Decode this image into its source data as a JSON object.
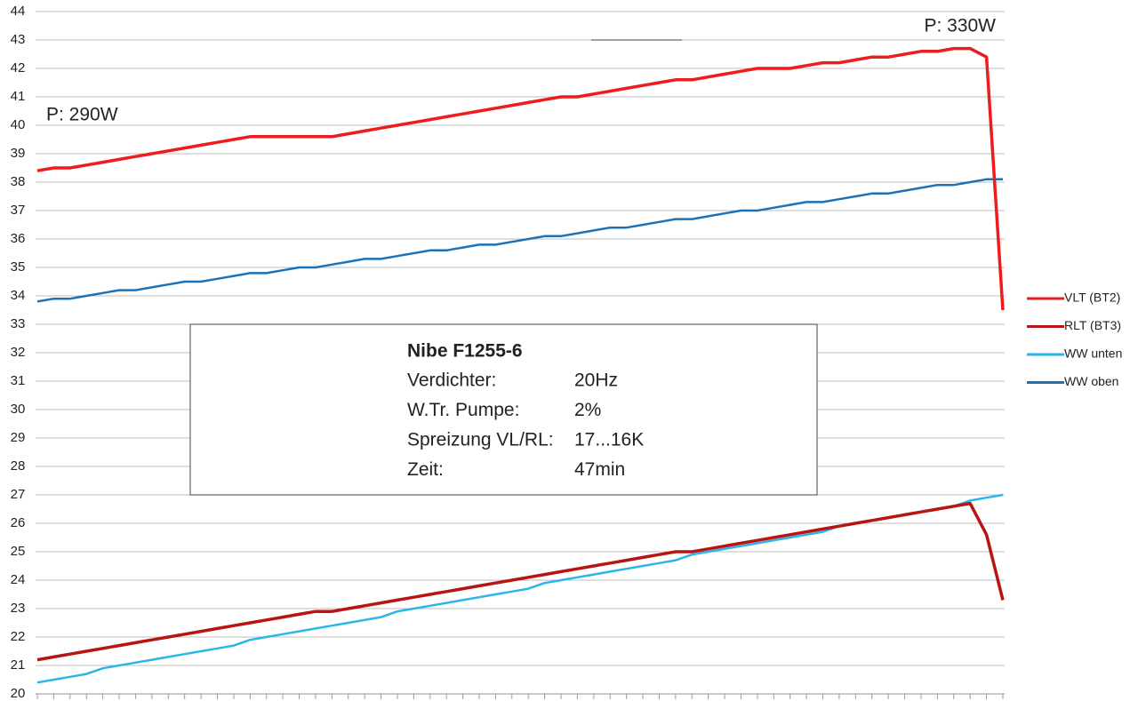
{
  "chart_data": {
    "type": "line",
    "categories": [
      null,
      null,
      null,
      null,
      null,
      null,
      null,
      null,
      null,
      null,
      null,
      null,
      null,
      null,
      null,
      null,
      null,
      null,
      null,
      null,
      null,
      null,
      null,
      null,
      null,
      null,
      null,
      null,
      null,
      null,
      null,
      null,
      null,
      null,
      null,
      null,
      null,
      null,
      null,
      null,
      null,
      null,
      null,
      null,
      null,
      null,
      null,
      null,
      null,
      null,
      null,
      null,
      null,
      null,
      null,
      null,
      null,
      null,
      null,
      null
    ],
    "series": [
      {
        "name": "VLT (BT2)",
        "color": "#ee1c1c",
        "width": 3.5,
        "values": [
          38.4,
          38.5,
          38.5,
          38.6,
          38.7,
          38.8,
          38.9,
          39.0,
          39.1,
          39.2,
          39.3,
          39.4,
          39.5,
          39.6,
          39.6,
          39.6,
          39.6,
          39.6,
          39.6,
          39.7,
          39.8,
          39.9,
          40.0,
          40.1,
          40.2,
          40.3,
          40.4,
          40.5,
          40.6,
          40.7,
          40.8,
          40.9,
          41.0,
          41.0,
          41.1,
          41.2,
          41.3,
          41.4,
          41.5,
          41.6,
          41.6,
          41.7,
          41.8,
          41.9,
          42.0,
          42.0,
          42.0,
          42.1,
          42.2,
          42.2,
          42.3,
          42.4,
          42.4,
          42.5,
          42.6,
          42.6,
          42.7,
          42.7,
          42.4,
          33.5
        ]
      },
      {
        "name": "RLT (BT3)",
        "color": "#b81414",
        "width": 3.5,
        "values": [
          21.2,
          21.3,
          21.4,
          21.5,
          21.6,
          21.7,
          21.8,
          21.9,
          22.0,
          22.1,
          22.2,
          22.3,
          22.4,
          22.5,
          22.6,
          22.7,
          22.8,
          22.9,
          22.9,
          23.0,
          23.1,
          23.2,
          23.3,
          23.4,
          23.5,
          23.6,
          23.7,
          23.8,
          23.9,
          24.0,
          24.1,
          24.2,
          24.3,
          24.4,
          24.5,
          24.6,
          24.7,
          24.8,
          24.9,
          25.0,
          25.0,
          25.1,
          25.2,
          25.3,
          25.4,
          25.5,
          25.6,
          25.7,
          25.8,
          25.9,
          26.0,
          26.1,
          26.2,
          26.3,
          26.4,
          26.5,
          26.6,
          26.7,
          25.6,
          23.3
        ]
      },
      {
        "name": "WW unten",
        "color": "#2bb5e8",
        "width": 2.5,
        "values": [
          20.4,
          20.5,
          20.6,
          20.7,
          20.9,
          21.0,
          21.1,
          21.2,
          21.3,
          21.4,
          21.5,
          21.6,
          21.7,
          21.9,
          22.0,
          22.1,
          22.2,
          22.3,
          22.4,
          22.5,
          22.6,
          22.7,
          22.9,
          23.0,
          23.1,
          23.2,
          23.3,
          23.4,
          23.5,
          23.6,
          23.7,
          23.9,
          24.0,
          24.1,
          24.2,
          24.3,
          24.4,
          24.5,
          24.6,
          24.7,
          24.9,
          25.0,
          25.1,
          25.2,
          25.3,
          25.4,
          25.5,
          25.6,
          25.7,
          25.9,
          26.0,
          26.1,
          26.2,
          26.3,
          26.4,
          26.5,
          26.6,
          26.8,
          26.9,
          27.0
        ]
      },
      {
        "name": "WW oben",
        "color": "#1a72b8",
        "width": 2.5,
        "values": [
          33.8,
          33.9,
          33.9,
          34.0,
          34.1,
          34.2,
          34.2,
          34.3,
          34.4,
          34.5,
          34.5,
          34.6,
          34.7,
          34.8,
          34.8,
          34.9,
          35.0,
          35.0,
          35.1,
          35.2,
          35.3,
          35.3,
          35.4,
          35.5,
          35.6,
          35.6,
          35.7,
          35.8,
          35.8,
          35.9,
          36.0,
          36.1,
          36.1,
          36.2,
          36.3,
          36.4,
          36.4,
          36.5,
          36.6,
          36.7,
          36.7,
          36.8,
          36.9,
          37.0,
          37.0,
          37.1,
          37.2,
          37.3,
          37.3,
          37.4,
          37.5,
          37.6,
          37.6,
          37.7,
          37.8,
          37.9,
          37.9,
          38.0,
          38.1,
          38.1
        ]
      }
    ],
    "ylim": [
      20,
      44
    ],
    "yticks": [
      20,
      21,
      22,
      23,
      24,
      25,
      26,
      27,
      28,
      29,
      30,
      31,
      32,
      33,
      34,
      35,
      36,
      37,
      38,
      39,
      40,
      41,
      42,
      43,
      44
    ],
    "grid": true,
    "legend": "right",
    "annotations": [
      "P: 290W",
      "P: 330W"
    ],
    "info_box": {
      "title": "Nibe F1255-6",
      "rows": [
        [
          "Verdichter:",
          "20Hz"
        ],
        [
          "W.Tr. Pumpe:",
          "2%"
        ],
        [
          "Spreizung VL/RL:",
          "17...16K"
        ],
        [
          "Zeit:",
          "47min"
        ]
      ]
    }
  }
}
